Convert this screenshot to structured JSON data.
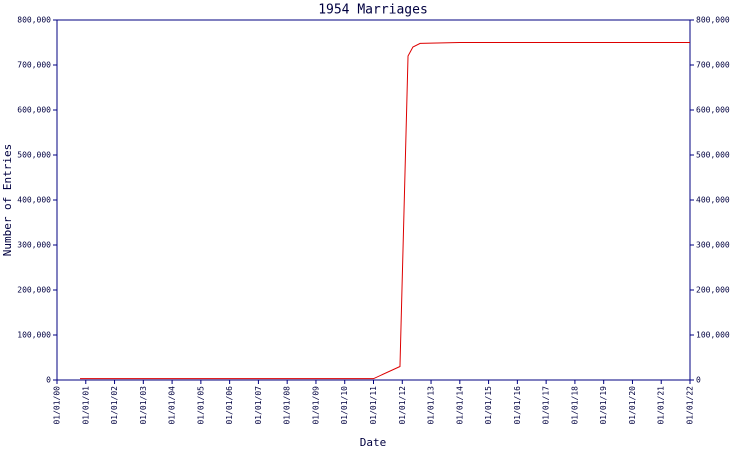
{
  "chart_data": {
    "type": "line",
    "title": "1954 Marriages",
    "x_label": "Date",
    "y_label": "Number of Entries",
    "x": [
      0.8,
      11.0,
      11.92,
      12.2,
      12.37,
      12.62,
      14,
      22
    ],
    "series": [
      {
        "name": "1954 Marriages",
        "color": "#dd0000",
        "values": [
          3000,
          3000,
          30000,
          720000,
          740000,
          748000,
          750000,
          750000
        ]
      }
    ],
    "xlim": [
      0,
      22
    ],
    "xticks": [
      {
        "value": 0,
        "label": "01/01/00"
      },
      {
        "value": 1,
        "label": "01/01/01"
      },
      {
        "value": 2,
        "label": "01/01/02"
      },
      {
        "value": 3,
        "label": "01/01/03"
      },
      {
        "value": 4,
        "label": "01/01/04"
      },
      {
        "value": 5,
        "label": "01/01/05"
      },
      {
        "value": 6,
        "label": "01/01/06"
      },
      {
        "value": 7,
        "label": "01/01/07"
      },
      {
        "value": 8,
        "label": "01/01/08"
      },
      {
        "value": 9,
        "label": "01/01/09"
      },
      {
        "value": 10,
        "label": "01/01/10"
      },
      {
        "value": 11,
        "label": "01/01/11"
      },
      {
        "value": 12,
        "label": "01/01/12"
      },
      {
        "value": 13,
        "label": "01/01/13"
      },
      {
        "value": 14,
        "label": "01/01/14"
      },
      {
        "value": 15,
        "label": "01/01/15"
      },
      {
        "value": 16,
        "label": "01/01/16"
      },
      {
        "value": 17,
        "label": "01/01/17"
      },
      {
        "value": 18,
        "label": "01/01/18"
      },
      {
        "value": 19,
        "label": "01/01/19"
      },
      {
        "value": 20,
        "label": "01/01/20"
      },
      {
        "value": 21,
        "label": "01/01/21"
      },
      {
        "value": 22,
        "label": "01/01/22"
      }
    ],
    "ylim": [
      0,
      800000
    ],
    "yticks": [
      0,
      {
        "value": 100000,
        "label": "100,000"
      },
      {
        "value": 200000,
        "label": "200,000"
      },
      {
        "value": 300000,
        "label": "300,000"
      },
      {
        "value": 400000,
        "label": "400,000"
      },
      {
        "value": 500000,
        "label": "500,000"
      },
      {
        "value": 600000,
        "label": "600,000"
      },
      {
        "value": 700000,
        "label": "700,000"
      },
      {
        "value": 800000,
        "label": "800,000"
      }
    ],
    "y2lim": [
      0,
      800000
    ],
    "y2ticks": [
      0,
      {
        "value": 100000,
        "label": "100,000"
      },
      {
        "value": 200000,
        "label": "200,000"
      },
      {
        "value": 300000,
        "label": "300,000"
      },
      {
        "value": 400000,
        "label": "400,000"
      },
      {
        "value": 500000,
        "label": "500,000"
      },
      {
        "value": 600000,
        "label": "600,000"
      },
      {
        "value": 700000,
        "label": "700,000"
      },
      {
        "value": 800000,
        "label": "800,000"
      }
    ],
    "grid": false
  }
}
